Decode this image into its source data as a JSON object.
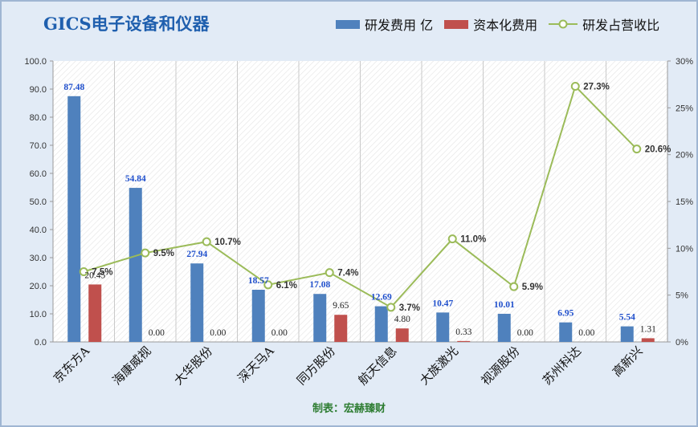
{
  "title": "GICS电子设备和仪器",
  "credit": "制表：宏赫臻财",
  "colors": {
    "rd": "#4f81bd",
    "cap": "#c0504d",
    "ratio": "#9bbb59",
    "rd_label": "#1f4fcc",
    "grid": "#c9c9c9"
  },
  "chart_data": {
    "type": "bar",
    "categories": [
      "京东方A",
      "海康威视",
      "大华股份",
      "深天马A",
      "同方股份",
      "航天信息",
      "大族激光",
      "视源股份",
      "苏州科达",
      "高新兴"
    ],
    "series": [
      {
        "name": "研发费用 亿",
        "type": "bar",
        "axis": "left",
        "values": [
          87.48,
          54.84,
          27.94,
          18.57,
          17.08,
          12.69,
          10.47,
          10.01,
          6.95,
          5.54
        ],
        "labels": [
          "87.48",
          "54.84",
          "27.94",
          "18.57",
          "17.08",
          "12.69",
          "10.47",
          "10.01",
          "6.95",
          "5.54"
        ]
      },
      {
        "name": "资本化费用",
        "type": "bar",
        "axis": "left",
        "values": [
          20.45,
          0.0,
          0.0,
          0.0,
          9.65,
          4.8,
          0.33,
          0.0,
          0.0,
          1.31
        ],
        "labels": [
          "20.45",
          "0.00",
          "0.00",
          "0.00",
          "9.65",
          "4.80",
          "0.33",
          "0.00",
          "0.00",
          "1.31"
        ]
      },
      {
        "name": "研发占营收比",
        "type": "line",
        "axis": "right",
        "values": [
          7.5,
          9.5,
          10.7,
          6.1,
          7.4,
          3.7,
          11.0,
          5.9,
          27.3,
          20.6
        ],
        "labels": [
          "7.5%",
          "9.5%",
          "10.7%",
          "6.1%",
          "7.4%",
          "3.7%",
          "11.0%",
          "5.9%",
          "27.3%",
          "20.6%"
        ]
      }
    ],
    "y_left": {
      "ylim": [
        0,
        100
      ],
      "ticks": [
        "0.0",
        "10.0",
        "20.0",
        "30.0",
        "40.0",
        "50.0",
        "60.0",
        "70.0",
        "80.0",
        "90.0",
        "100.0"
      ]
    },
    "y_right": {
      "ylim": [
        0,
        30
      ],
      "ticks": [
        "0%",
        "5%",
        "10%",
        "15%",
        "20%",
        "25%",
        "30%"
      ]
    },
    "grid": true,
    "legend": "top-right"
  }
}
